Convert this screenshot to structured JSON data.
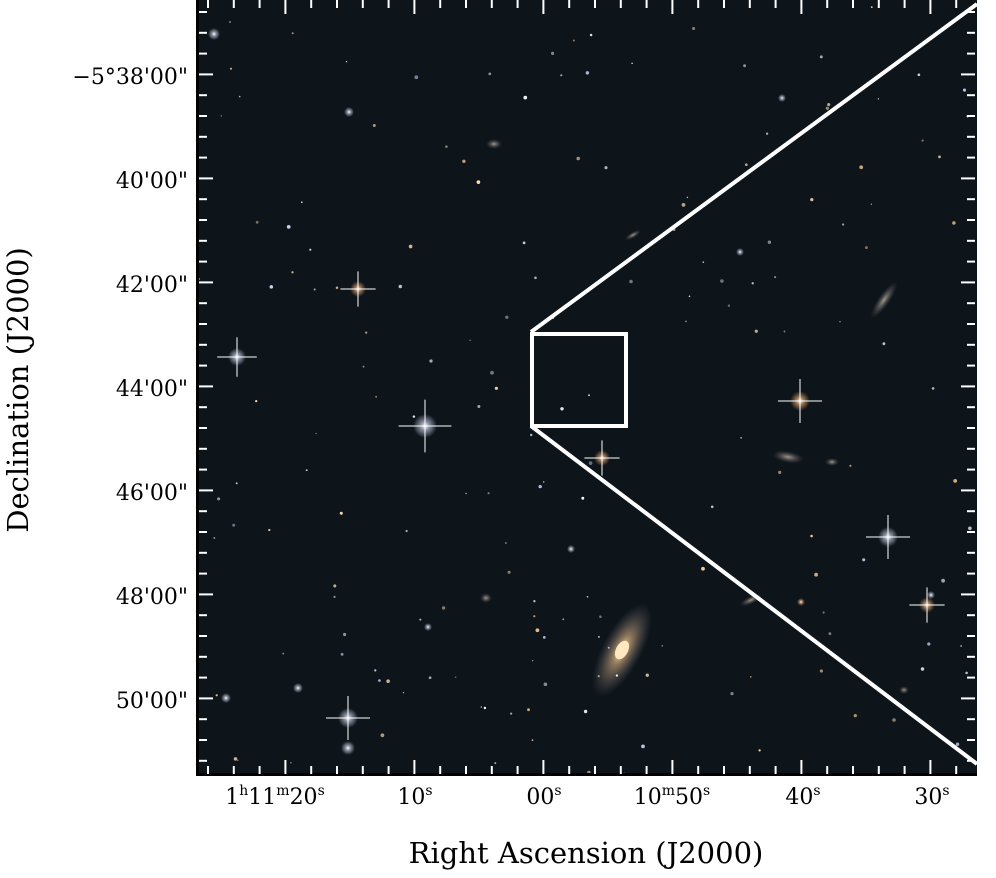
{
  "axes": {
    "y_title": "Declination (J2000)",
    "x_title": "Right Ascension (J2000)",
    "dec_ticks": [
      "−5°38'00\"",
      "40'00\"",
      "42'00\"",
      "44'00\"",
      "46'00\"",
      "48'00\"",
      "50'00\""
    ],
    "ra_ticks": [
      {
        "pre": "1",
        "sup1": "h",
        "mid": "11",
        "sup2": "m",
        "post": "20",
        "sup3": "s"
      },
      {
        "pre": "",
        "sup1": "",
        "mid": "",
        "sup2": "",
        "post": "10",
        "sup3": "s"
      },
      {
        "pre": "",
        "sup1": "",
        "mid": "",
        "sup2": "",
        "post": "00",
        "sup3": "s"
      },
      {
        "pre": "",
        "sup1": "",
        "mid": "10",
        "sup2": "m",
        "post": "50",
        "sup3": "s"
      },
      {
        "pre": "",
        "sup1": "",
        "mid": "",
        "sup2": "",
        "post": "40",
        "sup3": "s"
      },
      {
        "pre": "",
        "sup1": "",
        "mid": "",
        "sup2": "",
        "post": "30",
        "sup3": "s"
      }
    ]
  },
  "colors": {
    "sky": "#0d141a",
    "overlay": "#ffffff"
  }
}
